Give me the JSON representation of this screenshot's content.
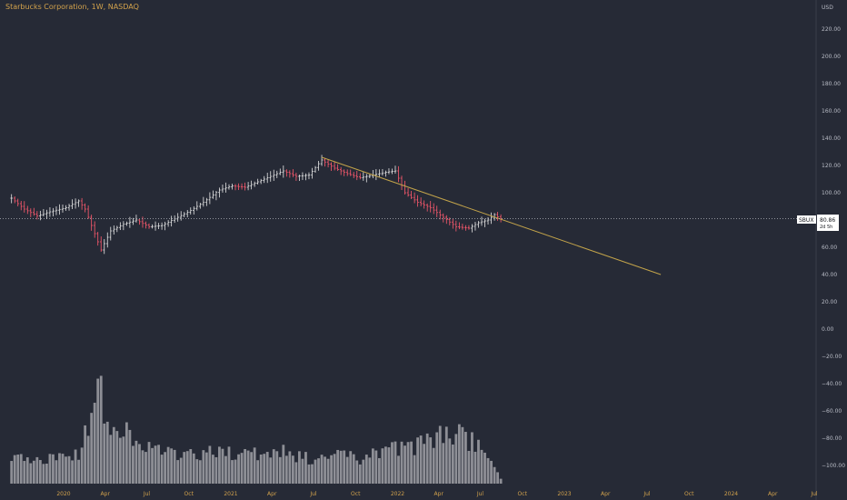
{
  "header": {
    "title": "Starbucks Corporation, 1W, NASDAQ"
  },
  "price_axis": {
    "currency": "USD"
  },
  "price_tag": {
    "symbol": "SBUX",
    "value": "80.86",
    "countdown": "2d 5h"
  },
  "colors": {
    "background": "#262a36",
    "candle_up": "#e6e6e6",
    "candle_down": "#ff5a6e",
    "trendline": "#c2a34a",
    "volume": "#8e8f96",
    "axis_text": "#b9bcc6",
    "time_text": "#d2a24c"
  },
  "chart_data": {
    "type": "candlestick",
    "title": "Starbucks Corporation, 1W, NASDAQ",
    "y_unit": "USD",
    "ylim": [
      -110,
      235
    ],
    "y_ticks": [
      220,
      200,
      180,
      160,
      140,
      120,
      100,
      80,
      60,
      40,
      20,
      0,
      -20,
      -40,
      -60,
      -80,
      -100
    ],
    "y_tick_labels": [
      "220.00",
      "200.00",
      "180.00",
      "160.00",
      "140.00",
      "120.00",
      "100.00",
      "80.00",
      "60.00",
      "40.00",
      "20.00",
      "0.00",
      "−20.00",
      "−40.00",
      "−60.00",
      "−80.00",
      "−100.00"
    ],
    "x_ticks": [
      "2020",
      "Apr",
      "Jul",
      "Oct",
      "2021",
      "Apr",
      "Jul",
      "Oct",
      "2022",
      "Apr",
      "Jul",
      "Oct",
      "2023",
      "Apr",
      "Jul",
      "Oct",
      "2024",
      "Apr",
      "Jul"
    ],
    "x_tick_dates": [
      "2020-01-01",
      "2020-04-01",
      "2020-07-01",
      "2020-10-01",
      "2021-01-01",
      "2021-04-01",
      "2021-07-01",
      "2021-10-01",
      "2022-01-01",
      "2022-04-01",
      "2022-07-01",
      "2022-10-01",
      "2023-01-01",
      "2023-04-01",
      "2023-07-01",
      "2023-10-01",
      "2024-01-01",
      "2024-04-01",
      "2024-07-01"
    ],
    "last_price": 80.86,
    "price_path": [
      [
        "2019-09-09",
        96
      ],
      [
        "2019-10-07",
        88
      ],
      [
        "2019-11-04",
        83
      ],
      [
        "2019-12-02",
        86
      ],
      [
        "2020-01-06",
        89
      ],
      [
        "2020-02-03",
        94
      ],
      [
        "2020-02-17",
        88
      ],
      [
        "2020-03-09",
        70
      ],
      [
        "2020-03-23",
        58
      ],
      [
        "2020-04-13",
        72
      ],
      [
        "2020-05-11",
        77
      ],
      [
        "2020-06-08",
        80
      ],
      [
        "2020-07-06",
        75
      ],
      [
        "2020-08-03",
        76
      ],
      [
        "2020-09-07",
        82
      ],
      [
        "2020-10-05",
        87
      ],
      [
        "2020-11-02",
        93
      ],
      [
        "2020-12-07",
        102
      ],
      [
        "2021-01-04",
        105
      ],
      [
        "2021-02-01",
        104
      ],
      [
        "2021-03-01",
        108
      ],
      [
        "2021-04-05",
        113
      ],
      [
        "2021-04-26",
        116
      ],
      [
        "2021-05-24",
        112
      ],
      [
        "2021-06-21",
        113
      ],
      [
        "2021-07-19",
        124
      ],
      [
        "2021-08-16",
        118
      ],
      [
        "2021-09-13",
        114
      ],
      [
        "2021-10-11",
        111
      ],
      [
        "2021-11-08",
        113
      ],
      [
        "2021-12-06",
        115
      ],
      [
        "2021-12-27",
        116
      ],
      [
        "2022-01-17",
        100
      ],
      [
        "2022-02-14",
        93
      ],
      [
        "2022-03-14",
        89
      ],
      [
        "2022-04-11",
        82
      ],
      [
        "2022-05-09",
        75
      ],
      [
        "2022-06-06",
        74
      ],
      [
        "2022-06-27",
        78
      ],
      [
        "2022-07-18",
        80
      ],
      [
        "2022-08-01",
        84
      ],
      [
        "2022-08-15",
        80.86
      ]
    ],
    "trendline": {
      "from": [
        "2021-07-19",
        126
      ],
      "to": [
        "2023-07-31",
        40
      ]
    },
    "volume_path": [
      [
        "2019-09-09",
        4
      ],
      [
        "2019-12-02",
        4
      ],
      [
        "2020-02-03",
        4.5
      ],
      [
        "2020-03-09",
        13
      ],
      [
        "2020-03-16",
        17
      ],
      [
        "2020-04-13",
        7
      ],
      [
        "2020-05-11",
        8.5
      ],
      [
        "2020-06-08",
        6
      ],
      [
        "2020-08-03",
        5
      ],
      [
        "2020-10-05",
        4.5
      ],
      [
        "2020-12-07",
        5
      ],
      [
        "2021-02-01",
        4.5
      ],
      [
        "2021-04-26",
        5
      ],
      [
        "2021-06-21",
        4
      ],
      [
        "2021-08-16",
        4.5
      ],
      [
        "2021-10-11",
        4
      ],
      [
        "2021-12-06",
        5.5
      ],
      [
        "2022-02-14",
        6
      ],
      [
        "2022-03-14",
        7
      ],
      [
        "2022-05-09",
        8
      ],
      [
        "2022-06-27",
        6
      ],
      [
        "2022-08-15",
        1
      ]
    ],
    "volume_scale_max": 18
  }
}
